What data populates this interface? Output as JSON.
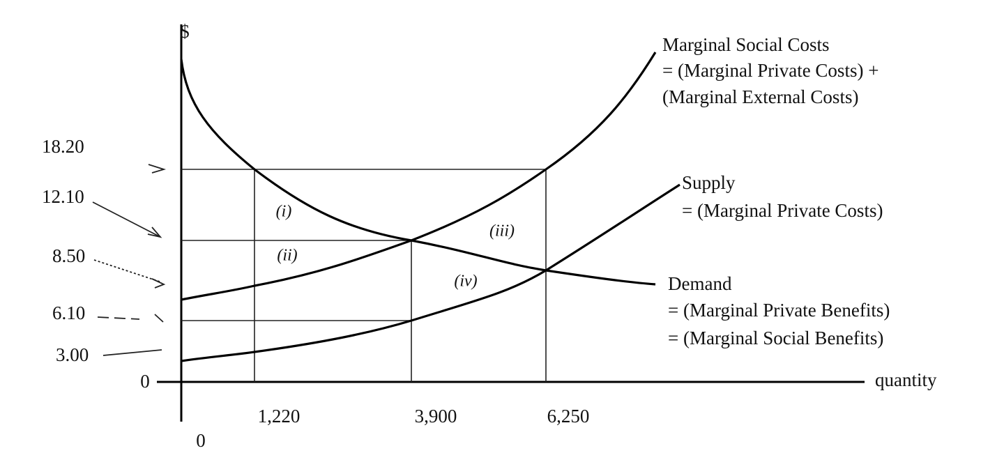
{
  "y_axis_label": "$",
  "x_axis_label": "quantity",
  "origin_labels": {
    "y": "0",
    "x": "0"
  },
  "price_labels": [
    "18.20",
    "12.10",
    "8.50",
    "6.10",
    "3.00"
  ],
  "quantity_labels": [
    "1,220",
    "3,900",
    "6,250"
  ],
  "area_labels": [
    "(i)",
    "(ii)",
    "(iii)",
    "(iv)"
  ],
  "curve_labels": {
    "marginal_social_costs": [
      "Marginal Social Costs",
      "= (Marginal Private Costs) +",
      "(Marginal External Costs)"
    ],
    "supply": [
      "Supply",
      "= (Marginal Private Costs)"
    ],
    "demand": [
      "Demand",
      "= (Marginal Private Benefits)",
      "= (Marginal Social Benefits)"
    ]
  }
}
